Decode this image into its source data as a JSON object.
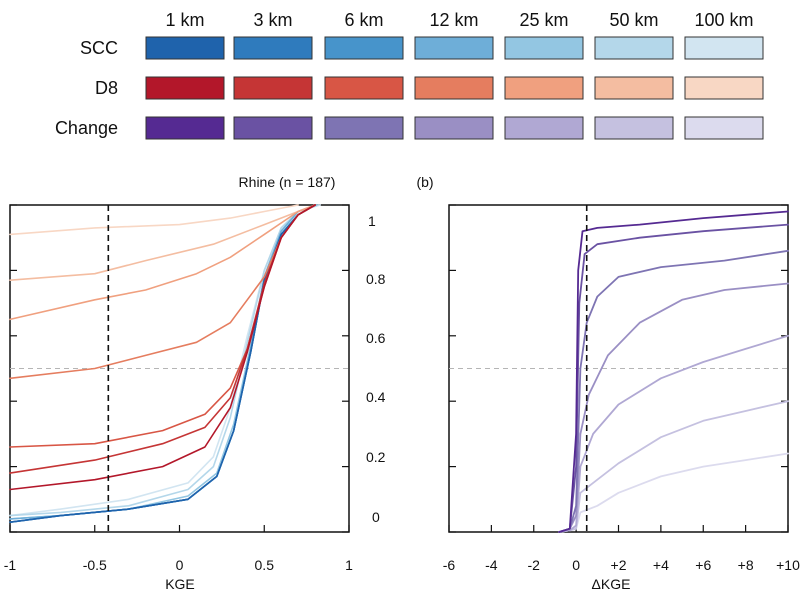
{
  "legend": {
    "resolutions": [
      "1 km",
      "3 km",
      "6 km",
      "12 km",
      "25 km",
      "50 km",
      "100 km"
    ],
    "rows": [
      {
        "label": "SCC",
        "colors": [
          "#1f63ac",
          "#2f7bbd",
          "#4794cb",
          "#6eaed8",
          "#93c6e2",
          "#b4d7ea",
          "#d2e5f1"
        ]
      },
      {
        "label": "D8",
        "colors": [
          "#b3172a",
          "#c53535",
          "#d85645",
          "#e57d5f",
          "#f0a07f",
          "#f4bda1",
          "#f8d7c4"
        ]
      },
      {
        "label": "Change",
        "colors": [
          "#552a92",
          "#6a52a3",
          "#7e74b3",
          "#9a8fc4",
          "#b0a8d3",
          "#c5c1e0",
          "#dcdbee"
        ]
      }
    ]
  },
  "panel_a": {
    "title": "Rhine (n = 187)",
    "xlabel": "KGE",
    "ytick_labels": [
      "0",
      "0.2",
      "0.4",
      "0.6",
      "0.8",
      "1"
    ]
  },
  "panel_b": {
    "tag": "(b)",
    "xlabel": "ΔKGE"
  },
  "chart_data": [
    {
      "type": "line",
      "title": "Rhine (n = 187)",
      "xlabel": "KGE",
      "ylabel": "",
      "xlim": [
        -1,
        1
      ],
      "ylim": [
        0,
        1
      ],
      "xticks": [
        -1,
        -0.5,
        0,
        0.5,
        1
      ],
      "xtick_labels": [
        "-1",
        "-0.5",
        "0",
        "0.5",
        "1"
      ],
      "yticks": [
        0,
        0.2,
        0.4,
        0.6,
        0.8,
        1
      ],
      "ytick_labels": [
        "0",
        "0.2",
        "0.4",
        "0.6",
        "0.8",
        "1"
      ],
      "vline": -0.42,
      "hline": 0.5,
      "series": [
        {
          "name": "SCC 100 km",
          "color": "#d2e5f1",
          "points": [
            [
              -1,
              0.05
            ],
            [
              -0.7,
              0.07
            ],
            [
              -0.3,
              0.1
            ],
            [
              0.05,
              0.15
            ],
            [
              0.2,
              0.23
            ],
            [
              0.3,
              0.38
            ],
            [
              0.4,
              0.6
            ],
            [
              0.5,
              0.8
            ],
            [
              0.6,
              0.93
            ],
            [
              0.7,
              0.98
            ],
            [
              0.83,
              1
            ]
          ]
        },
        {
          "name": "SCC 50 km",
          "color": "#b4d7ea",
          "points": [
            [
              -1,
              0.05
            ],
            [
              -0.7,
              0.06
            ],
            [
              -0.3,
              0.08
            ],
            [
              0.05,
              0.13
            ],
            [
              0.2,
              0.2
            ],
            [
              0.3,
              0.35
            ],
            [
              0.4,
              0.58
            ],
            [
              0.5,
              0.8
            ],
            [
              0.6,
              0.93
            ],
            [
              0.7,
              0.98
            ],
            [
              0.82,
              1
            ]
          ]
        },
        {
          "name": "SCC 25 km",
          "color": "#93c6e2",
          "points": [
            [
              -1,
              0.04
            ],
            [
              -0.7,
              0.05
            ],
            [
              -0.3,
              0.07
            ],
            [
              0.05,
              0.11
            ],
            [
              0.22,
              0.18
            ],
            [
              0.32,
              0.33
            ],
            [
              0.42,
              0.57
            ],
            [
              0.5,
              0.78
            ],
            [
              0.6,
              0.92
            ],
            [
              0.7,
              0.98
            ],
            [
              0.81,
              1
            ]
          ]
        },
        {
          "name": "SCC 12 km",
          "color": "#6eaed8",
          "points": [
            [
              -1,
              0.04
            ],
            [
              -0.7,
              0.05
            ],
            [
              -0.3,
              0.07
            ],
            [
              0.05,
              0.1
            ],
            [
              0.22,
              0.17
            ],
            [
              0.32,
              0.31
            ],
            [
              0.42,
              0.56
            ],
            [
              0.5,
              0.78
            ],
            [
              0.6,
              0.92
            ],
            [
              0.7,
              0.98
            ],
            [
              0.8,
              1
            ]
          ]
        },
        {
          "name": "SCC 6 km",
          "color": "#4794cb",
          "points": [
            [
              -1,
              0.03
            ],
            [
              -0.7,
              0.05
            ],
            [
              -0.3,
              0.07
            ],
            [
              0.05,
              0.1
            ],
            [
              0.22,
              0.17
            ],
            [
              0.32,
              0.31
            ],
            [
              0.42,
              0.55
            ],
            [
              0.5,
              0.77
            ],
            [
              0.6,
              0.91
            ],
            [
              0.7,
              0.97
            ],
            [
              0.8,
              1
            ]
          ]
        },
        {
          "name": "SCC 3 km",
          "color": "#2f7bbd",
          "points": [
            [
              -1,
              0.03
            ],
            [
              -0.7,
              0.05
            ],
            [
              -0.3,
              0.07
            ],
            [
              0.05,
              0.1
            ],
            [
              0.22,
              0.17
            ],
            [
              0.32,
              0.31
            ],
            [
              0.42,
              0.55
            ],
            [
              0.5,
              0.77
            ],
            [
              0.6,
              0.91
            ],
            [
              0.7,
              0.97
            ],
            [
              0.8,
              1
            ]
          ]
        },
        {
          "name": "SCC 1 km",
          "color": "#1f63ac",
          "points": [
            [
              -1,
              0.03
            ],
            [
              -0.7,
              0.05
            ],
            [
              -0.3,
              0.07
            ],
            [
              0.05,
              0.1
            ],
            [
              0.22,
              0.17
            ],
            [
              0.32,
              0.31
            ],
            [
              0.42,
              0.55
            ],
            [
              0.5,
              0.77
            ],
            [
              0.6,
              0.91
            ],
            [
              0.7,
              0.97
            ],
            [
              0.8,
              1
            ]
          ]
        },
        {
          "name": "D8 100 km",
          "color": "#f8d7c4",
          "points": [
            [
              -1,
              0.91
            ],
            [
              -0.5,
              0.93
            ],
            [
              0,
              0.94
            ],
            [
              0.3,
              0.96
            ],
            [
              0.5,
              0.98
            ],
            [
              0.7,
              1
            ]
          ]
        },
        {
          "name": "D8 50 km",
          "color": "#f4bda1",
          "points": [
            [
              -1,
              0.77
            ],
            [
              -0.5,
              0.79
            ],
            [
              -0.2,
              0.83
            ],
            [
              0.2,
              0.88
            ],
            [
              0.5,
              0.94
            ],
            [
              0.7,
              0.98
            ],
            [
              0.8,
              1
            ]
          ]
        },
        {
          "name": "D8 25 km",
          "color": "#f0a07f",
          "points": [
            [
              -1,
              0.65
            ],
            [
              -0.5,
              0.71
            ],
            [
              -0.2,
              0.74
            ],
            [
              0.1,
              0.79
            ],
            [
              0.3,
              0.84
            ],
            [
              0.5,
              0.91
            ],
            [
              0.7,
              0.98
            ],
            [
              0.8,
              1
            ]
          ]
        },
        {
          "name": "D8 12 km",
          "color": "#e57d5f",
          "points": [
            [
              -1,
              0.47
            ],
            [
              -0.5,
              0.5
            ],
            [
              -0.2,
              0.54
            ],
            [
              0.1,
              0.58
            ],
            [
              0.3,
              0.64
            ],
            [
              0.5,
              0.78
            ],
            [
              0.6,
              0.9
            ],
            [
              0.7,
              0.97
            ],
            [
              0.8,
              1
            ]
          ]
        },
        {
          "name": "D8 6 km",
          "color": "#d85645",
          "points": [
            [
              -1,
              0.26
            ],
            [
              -0.5,
              0.27
            ],
            [
              -0.1,
              0.31
            ],
            [
              0.15,
              0.36
            ],
            [
              0.3,
              0.44
            ],
            [
              0.4,
              0.56
            ],
            [
              0.5,
              0.75
            ],
            [
              0.6,
              0.9
            ],
            [
              0.7,
              0.97
            ],
            [
              0.8,
              1
            ]
          ]
        },
        {
          "name": "D8 3 km",
          "color": "#c53535",
          "points": [
            [
              -1,
              0.18
            ],
            [
              -0.5,
              0.22
            ],
            [
              -0.1,
              0.27
            ],
            [
              0.15,
              0.32
            ],
            [
              0.3,
              0.41
            ],
            [
              0.4,
              0.56
            ],
            [
              0.5,
              0.76
            ],
            [
              0.6,
              0.9
            ],
            [
              0.7,
              0.97
            ],
            [
              0.8,
              1
            ]
          ]
        },
        {
          "name": "D8 1 km",
          "color": "#b3172a",
          "points": [
            [
              -1,
              0.13
            ],
            [
              -0.5,
              0.16
            ],
            [
              -0.1,
              0.2
            ],
            [
              0.15,
              0.26
            ],
            [
              0.3,
              0.38
            ],
            [
              0.4,
              0.55
            ],
            [
              0.5,
              0.75
            ],
            [
              0.6,
              0.9
            ],
            [
              0.7,
              0.97
            ],
            [
              0.8,
              1
            ]
          ]
        }
      ]
    },
    {
      "type": "line",
      "title": "",
      "xlabel": "ΔKGE",
      "ylabel": "",
      "xlim": [
        -6,
        10
      ],
      "ylim": [
        0,
        1
      ],
      "xticks": [
        -6,
        -4,
        -2,
        0,
        2,
        4,
        6,
        8,
        10
      ],
      "xtick_labels": [
        "-6",
        "-4",
        "-2",
        "0",
        "+2",
        "+4",
        "+6",
        "+8",
        "+10"
      ],
      "yticks": [
        0,
        0.2,
        0.4,
        0.6,
        0.8,
        1
      ],
      "vline": 0.5,
      "hline": 0.5,
      "series": [
        {
          "name": "Change 100 km",
          "color": "#dcdbee",
          "points": [
            [
              -0.8,
              0
            ],
            [
              -0.3,
              0.005
            ],
            [
              0,
              0.01
            ],
            [
              0.2,
              0.06
            ],
            [
              1,
              0.08
            ],
            [
              2,
              0.12
            ],
            [
              4,
              0.17
            ],
            [
              6,
              0.2
            ],
            [
              8,
              0.22
            ],
            [
              10,
              0.24
            ]
          ]
        },
        {
          "name": "Change 50 km",
          "color": "#c5c1e0",
          "points": [
            [
              -0.8,
              0
            ],
            [
              -0.3,
              0.005
            ],
            [
              0,
              0.01
            ],
            [
              0.2,
              0.12
            ],
            [
              1,
              0.16
            ],
            [
              2,
              0.21
            ],
            [
              4,
              0.29
            ],
            [
              6,
              0.34
            ],
            [
              8,
              0.37
            ],
            [
              10,
              0.4
            ]
          ]
        },
        {
          "name": "Change 25 km",
          "color": "#b0a8d3",
          "points": [
            [
              -0.8,
              0
            ],
            [
              -0.3,
              0.005
            ],
            [
              0,
              0.02
            ],
            [
              0.2,
              0.2
            ],
            [
              0.8,
              0.3
            ],
            [
              2,
              0.39
            ],
            [
              4,
              0.47
            ],
            [
              6,
              0.52
            ],
            [
              8,
              0.56
            ],
            [
              10,
              0.6
            ]
          ]
        },
        {
          "name": "Change 12 km",
          "color": "#9a8fc4",
          "points": [
            [
              -0.8,
              0
            ],
            [
              -0.3,
              0.01
            ],
            [
              0,
              0.05
            ],
            [
              0.2,
              0.3
            ],
            [
              0.6,
              0.42
            ],
            [
              1.5,
              0.54
            ],
            [
              3,
              0.64
            ],
            [
              5,
              0.71
            ],
            [
              7,
              0.74
            ],
            [
              10,
              0.76
            ]
          ]
        },
        {
          "name": "Change 6 km",
          "color": "#7e74b3",
          "points": [
            [
              -0.8,
              0
            ],
            [
              -0.3,
              0.01
            ],
            [
              0,
              0.08
            ],
            [
              0.2,
              0.5
            ],
            [
              0.5,
              0.64
            ],
            [
              1,
              0.72
            ],
            [
              2,
              0.78
            ],
            [
              4,
              0.81
            ],
            [
              7,
              0.83
            ],
            [
              10,
              0.86
            ]
          ]
        },
        {
          "name": "Change 3 km",
          "color": "#6a52a3",
          "points": [
            [
              -0.8,
              0
            ],
            [
              -0.3,
              0.01
            ],
            [
              0,
              0.2
            ],
            [
              0.15,
              0.7
            ],
            [
              0.4,
              0.85
            ],
            [
              1,
              0.88
            ],
            [
              3,
              0.9
            ],
            [
              6,
              0.92
            ],
            [
              10,
              0.94
            ]
          ]
        },
        {
          "name": "Change 1 km",
          "color": "#552a92",
          "points": [
            [
              -0.8,
              0
            ],
            [
              -0.3,
              0.01
            ],
            [
              0,
              0.3
            ],
            [
              0.1,
              0.8
            ],
            [
              0.3,
              0.92
            ],
            [
              1,
              0.93
            ],
            [
              3,
              0.94
            ],
            [
              6,
              0.96
            ],
            [
              10,
              0.98
            ]
          ]
        }
      ]
    }
  ]
}
